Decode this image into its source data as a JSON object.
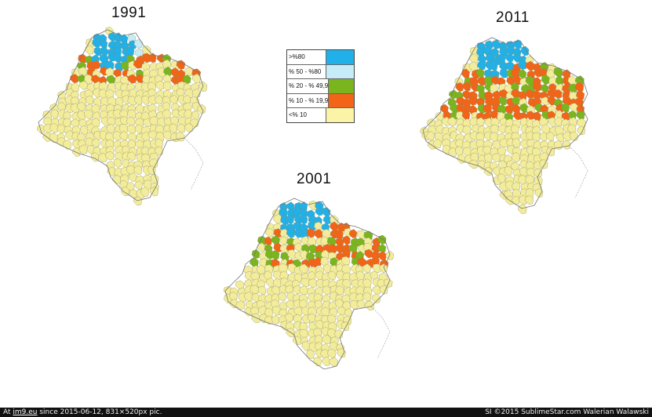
{
  "maps": [
    {
      "year": "1991",
      "counts": {
        "c1": 6,
        "c2": 2,
        "c3": 4,
        "c4": 5
      }
    },
    {
      "year": "2001",
      "counts": {
        "c1": 7,
        "c2": 0,
        "c3": 9,
        "c4": 9
      }
    },
    {
      "year": "2011",
      "counts": {
        "c1": 7,
        "c2": 0,
        "c3": 14,
        "c4": 18
      }
    }
  ],
  "legend": {
    "items": [
      {
        "label": ">%80",
        "color": "#22b0e8"
      },
      {
        "label": "% 50 - %80",
        "color": "#c6ecf7"
      },
      {
        "label": "% 20 - % 49,9",
        "color": "#7ab51e"
      },
      {
        "label": "% 10 - % 19,9",
        "color": "#f26418"
      },
      {
        "label": "<% 10",
        "color": "#fbf3a6"
      }
    ]
  },
  "base_color": "#f2ec9b",
  "footer": {
    "prefix": "At ",
    "site": "im9.eu",
    "suffix": " since 2015-06-12, 831×520px pic.",
    "right": "SI ©2015 SublimeStar.com Walerian Walawski"
  }
}
